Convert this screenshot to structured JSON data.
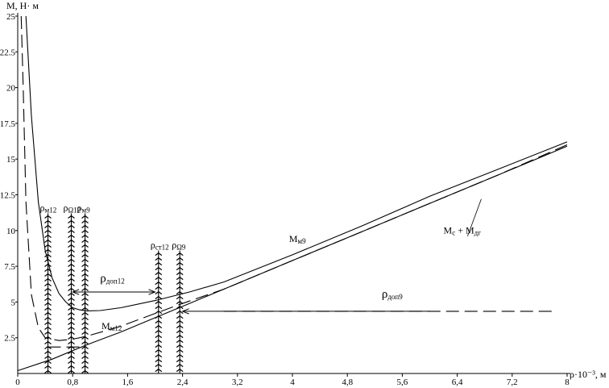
{
  "chart_data": {
    "type": "line",
    "title": "",
    "ylabel": "M, Н· м",
    "xlabel": "ρ·10⁻³, м",
    "xlim": [
      0,
      8
    ],
    "ylim": [
      0,
      25
    ],
    "x_ticks": [
      {
        "v": 0,
        "label": "0"
      },
      {
        "v": 0.8,
        "label": "0,8"
      },
      {
        "v": 1.6,
        "label": "1,6"
      },
      {
        "v": 2.4,
        "label": "2,4"
      },
      {
        "v": 3.2,
        "label": "3,2"
      },
      {
        "v": 4,
        "label": "4"
      },
      {
        "v": 4.8,
        "label": "4,8"
      },
      {
        "v": 5.6,
        "label": "5,6"
      },
      {
        "v": 6.4,
        "label": "6,4"
      },
      {
        "v": 7.2,
        "label": "7,2"
      },
      {
        "v": 8,
        "label": "8"
      }
    ],
    "y_ticks": [
      {
        "v": 2.5,
        "label": "2.5"
      },
      {
        "v": 5,
        "label": "5"
      },
      {
        "v": 7.5,
        "label": "7.5"
      },
      {
        "v": 10,
        "label": "10"
      },
      {
        "v": 12.5,
        "label": "12.5"
      },
      {
        "v": 15,
        "label": "15"
      },
      {
        "v": 17.5,
        "label": "17.5"
      },
      {
        "v": 20,
        "label": "20"
      },
      {
        "v": 22.5,
        "label": "22.5"
      },
      {
        "v": 25,
        "label": "25"
      }
    ],
    "grid": false,
    "series": [
      {
        "name": "Mм9",
        "style": "solid",
        "x": [
          0.12,
          0.2,
          0.3,
          0.4,
          0.5,
          0.6,
          0.7,
          0.8,
          0.9,
          1.0,
          1.2,
          1.5,
          2.0,
          2.5,
          3.0,
          4.0,
          5.0,
          6.0,
          7.0,
          8.0
        ],
        "y": [
          25.0,
          18.0,
          12.0,
          8.6,
          6.7,
          5.6,
          5.0,
          4.6,
          4.45,
          4.38,
          4.4,
          4.6,
          5.1,
          5.7,
          6.4,
          8.3,
          10.3,
          12.4,
          14.3,
          16.2
        ]
      },
      {
        "name": "Mм12",
        "style": "solid",
        "x": [
          0,
          0.5,
          1.0,
          1.5,
          2.0,
          2.5,
          3.0,
          4.0,
          5.0,
          6.0,
          7.0,
          8.0
        ],
        "y": [
          0.2,
          1.0,
          2.0,
          2.9,
          3.9,
          4.9,
          5.9,
          7.9,
          9.9,
          11.9,
          13.9,
          15.9
        ]
      },
      {
        "name": "Mс + Mдг",
        "style": "dashed",
        "x": [
          0.05,
          0.08,
          0.12,
          0.2,
          0.3,
          0.4,
          0.6,
          0.8,
          1.0,
          1.5,
          2.0,
          2.4,
          3.0,
          4.0,
          5.0,
          6.0,
          7.0,
          8.0
        ],
        "y": [
          25.0,
          20.0,
          12.0,
          5.5,
          3.2,
          2.5,
          2.3,
          2.4,
          2.6,
          3.3,
          4.2,
          4.9,
          5.9,
          7.9,
          9.9,
          11.9,
          13.9,
          16.0
        ]
      }
    ],
    "hatched_lines": [
      {
        "x": 0.44,
        "label": "ρм12",
        "top": 11.2
      },
      {
        "x": 0.78,
        "label": "ρΩ12",
        "top": 11.2
      },
      {
        "x": 0.98,
        "label": "ρм9",
        "top": 11.2
      },
      {
        "x": 2.05,
        "label": "ρст12",
        "top": 8.6
      },
      {
        "x": 2.36,
        "label": "ρΩ9",
        "top": 8.6
      }
    ],
    "short_dashed": [
      {
        "x": [
          0.44,
          1.0
        ],
        "y": [
          1.85,
          1.85
        ]
      },
      {
        "x": [
          3.0,
          7.8
        ],
        "y": [
          4.35,
          4.35
        ]
      }
    ],
    "arrows": [
      {
        "from": [
          0.8,
          5.7
        ],
        "to": [
          2.0,
          5.7
        ]
      },
      {
        "from": [
          6.0,
          4.35
        ],
        "to": [
          2.4,
          4.35
        ]
      }
    ],
    "annotations": [
      {
        "main": "M",
        "sub": "м9",
        "at": [
          3.95,
          9.2
        ]
      },
      {
        "main": "M",
        "sub": "м12",
        "at": [
          1.22,
          3.1
        ]
      },
      {
        "main": "M",
        "sub": "с",
        "extra": " + M",
        "sub2": "дг",
        "at": [
          6.2,
          9.8
        ]
      },
      {
        "main": "ρ",
        "sub": "доп12",
        "at": [
          1.2,
          6.4
        ],
        "big": true
      },
      {
        "main": "ρ",
        "sub": "доп9",
        "at": [
          5.3,
          5.3
        ],
        "big": true
      }
    ]
  }
}
